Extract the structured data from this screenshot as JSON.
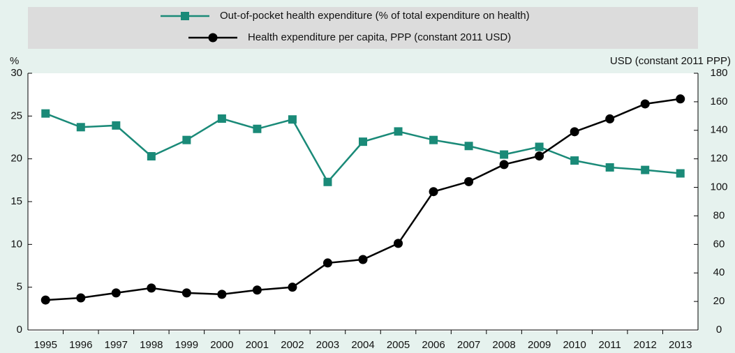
{
  "chart_data": {
    "type": "line",
    "y_label": "%",
    "y2_label": "USD (constant 2011 PPP)",
    "categories": [
      "1995",
      "1996",
      "1997",
      "1998",
      "1999",
      "2000",
      "2001",
      "2002",
      "2003",
      "2004",
      "2005",
      "2006",
      "2007",
      "2008",
      "2009",
      "2010",
      "2011",
      "2012",
      "2013"
    ],
    "series": [
      {
        "name": "Out-of-pocket health expenditure (% of total expenditure on health)",
        "color": "#1a8a78",
        "marker": "square",
        "values": [
          25.3,
          23.7,
          23.9,
          20.3,
          22.2,
          24.7,
          23.5,
          24.6,
          17.3,
          22.0,
          23.2,
          22.2,
          21.5,
          20.5,
          21.4,
          19.8,
          19.0,
          18.7,
          18.3
        ]
      },
      {
        "name": "Health expenditure per capita, PPP (constant 2011 USD)",
        "color": "#000000",
        "marker": "circle",
        "axis": "y2",
        "values": [
          21,
          22.5,
          26,
          29.4,
          26,
          25,
          28,
          30,
          47,
          49.4,
          60.7,
          97,
          104,
          116,
          122,
          139,
          148,
          158.5,
          162
        ]
      }
    ],
    "ylim": [
      0,
      30
    ],
    "yticks": [
      0,
      5,
      10,
      15,
      20,
      25,
      30
    ],
    "y2lim": [
      0,
      180
    ],
    "y2ticks": [
      0,
      20,
      40,
      60,
      80,
      100,
      120,
      140,
      160,
      180
    ]
  }
}
